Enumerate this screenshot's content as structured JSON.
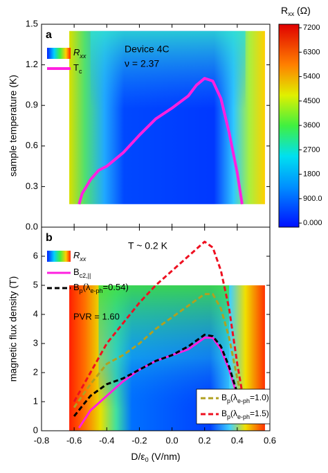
{
  "chart_data": [
    {
      "type": "line",
      "label": "a",
      "ylabel": "sample temperature (K)",
      "annotations": [
        "Device 4C",
        "ν = 2.37"
      ],
      "legend_map": [
        "R",
        "xx"
      ],
      "xlim": [
        -0.8,
        0.6
      ],
      "ylim": [
        0,
        1.5
      ],
      "yticks": [
        {
          "value": 0,
          "label": "0.0"
        },
        0.3,
        0.6,
        0.9,
        1.2,
        1.5
      ],
      "map_xlim": [
        -0.63,
        0.57
      ],
      "map_ylim": [
        0.17,
        1.45
      ],
      "zlabel": [
        "R",
        "xx",
        " (Ω)"
      ],
      "zlim": [
        -150,
        7330
      ],
      "zticks": [
        {
          "value": 0,
          "label": "0.000"
        },
        {
          "value": 900,
          "label": "900.0"
        },
        1800,
        2700,
        3600,
        4500,
        5400,
        6300,
        7200
      ],
      "series": [
        {
          "name": [
            "T",
            "c"
          ],
          "color": "#ff20e0",
          "width": 4,
          "dash": false,
          "x": [
            -0.57,
            -0.55,
            -0.5,
            -0.45,
            -0.4,
            -0.3,
            -0.2,
            -0.1,
            0,
            0.1,
            0.15,
            0.2,
            0.25,
            0.3,
            0.35,
            0.4,
            0.43
          ],
          "values": [
            0.17,
            0.25,
            0.35,
            0.42,
            0.45,
            0.55,
            0.68,
            0.8,
            0.88,
            0.97,
            1.05,
            1.1,
            1.08,
            0.95,
            0.7,
            0.4,
            0.17
          ]
        }
      ]
    },
    {
      "type": "line",
      "label": "b",
      "ylabel": "magnetic flux density (T)",
      "xlabel": [
        "D/ε",
        "0",
        " (V/nm)"
      ],
      "annotations": [
        "T ~ 0.2 K",
        "PVR = 1.60"
      ],
      "legend_map": [
        "R",
        "xx"
      ],
      "xlim": [
        -0.8,
        0.6
      ],
      "ylim": [
        0,
        7
      ],
      "xticks": [
        -0.8,
        -0.6,
        -0.4,
        -0.2,
        {
          "value": 0,
          "label": "0.0"
        },
        0.2,
        0.4,
        0.6
      ],
      "yticks": [
        0,
        1,
        2,
        3,
        4,
        5,
        6
      ],
      "map_xlim": [
        -0.63,
        0.57
      ],
      "map_ylim": [
        0,
        5
      ],
      "series": [
        {
          "name": [
            "B",
            "c2,||"
          ],
          "color": "#ff20e0",
          "width": 3,
          "dash": false,
          "x": [
            -0.57,
            -0.5,
            -0.4,
            -0.3,
            -0.2,
            -0.1,
            0,
            0.1,
            0.2,
            0.25,
            0.3,
            0.35,
            0.4,
            0.44
          ],
          "values": [
            0.1,
            0.7,
            1.2,
            1.7,
            2.1,
            2.4,
            2.6,
            2.8,
            3.2,
            3.2,
            2.8,
            2.1,
            1.2,
            0.3
          ]
        },
        {
          "name": [
            "B",
            "p",
            "(λ",
            "e-ph",
            "=0.54)"
          ],
          "color": "#000000",
          "width": 3,
          "dash": true,
          "x": [
            -0.6,
            -0.5,
            -0.4,
            -0.3,
            -0.2,
            -0.1,
            0,
            0.1,
            0.2,
            0.25,
            0.3,
            0.35,
            0.4,
            0.44
          ],
          "values": [
            0.5,
            1.2,
            1.6,
            1.8,
            2.1,
            2.4,
            2.6,
            2.9,
            3.3,
            3.25,
            2.9,
            2.2,
            1.3,
            0.6
          ]
        },
        {
          "name": [
            "B",
            "p",
            "(λ",
            "e-ph",
            "=1.0)"
          ],
          "color": "#b0a020",
          "width": 3,
          "dash": true,
          "x": [
            -0.6,
            -0.5,
            -0.4,
            -0.3,
            -0.2,
            -0.1,
            0,
            0.1,
            0.2,
            0.25,
            0.3,
            0.35,
            0.4,
            0.44
          ],
          "values": [
            0.8,
            1.6,
            2.3,
            2.6,
            3.0,
            3.5,
            3.9,
            4.3,
            4.7,
            4.7,
            4.2,
            3.2,
            1.8,
            0.8
          ]
        },
        {
          "name": [
            "B",
            "p",
            "(λ",
            "e-ph",
            "=1.5)"
          ],
          "color": "#ee1020",
          "width": 3,
          "dash": true,
          "x": [
            -0.6,
            -0.5,
            -0.4,
            -0.3,
            -0.2,
            -0.1,
            0,
            0.1,
            0.2,
            0.25,
            0.3,
            0.35,
            0.4,
            0.44
          ],
          "values": [
            1.0,
            2.0,
            3.0,
            3.7,
            4.4,
            5.0,
            5.5,
            6.0,
            6.5,
            6.3,
            5.5,
            4.2,
            2.3,
            1.0
          ]
        }
      ]
    }
  ]
}
